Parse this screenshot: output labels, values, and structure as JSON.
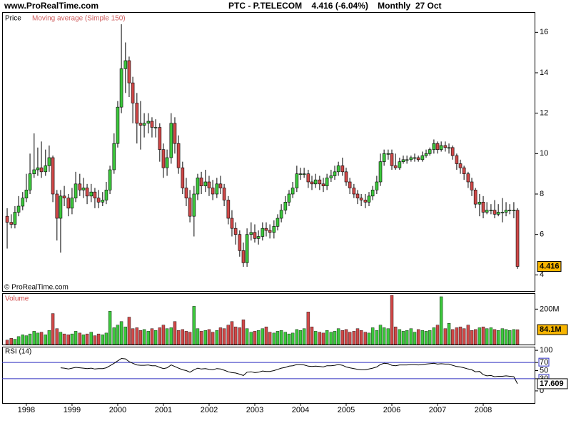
{
  "header": {
    "site": "www.ProRealTime.com",
    "title": "PTC - P.TELECOM    4.416 (-6.04%)    Monthly  27 Oct",
    "credit": "© ProRealTime.com"
  },
  "chart_data": [
    {
      "type": "candlestick",
      "title": "Price",
      "subtitle": "Moving average (Simple 150)",
      "up_color": "#3cc83c",
      "down_color": "#d04848",
      "xlim": [
        1997.47,
        2009.14
      ],
      "xticks": [
        1998,
        1999,
        2000,
        2001,
        2002,
        2003,
        2004,
        2005,
        2006,
        2007,
        2008
      ],
      "ylim": [
        3.2,
        17
      ],
      "yticks": [
        4,
        6,
        8,
        10,
        12,
        14,
        16
      ],
      "x": [
        1997.58,
        1997.67,
        1997.75,
        1997.83,
        1997.92,
        1998,
        1998.08,
        1998.17,
        1998.25,
        1998.33,
        1998.42,
        1998.5,
        1998.58,
        1998.67,
        1998.75,
        1998.83,
        1998.92,
        1999,
        1999.08,
        1999.17,
        1999.25,
        1999.33,
        1999.42,
        1999.5,
        1999.58,
        1999.67,
        1999.75,
        1999.83,
        1999.92,
        2000,
        2000.08,
        2000.17,
        2000.25,
        2000.33,
        2000.42,
        2000.5,
        2000.58,
        2000.67,
        2000.75,
        2000.83,
        2000.92,
        2001,
        2001.08,
        2001.17,
        2001.25,
        2001.33,
        2001.42,
        2001.5,
        2001.58,
        2001.67,
        2001.75,
        2001.83,
        2001.92,
        2002,
        2002.08,
        2002.17,
        2002.25,
        2002.33,
        2002.42,
        2002.5,
        2002.58,
        2002.67,
        2002.75,
        2002.83,
        2002.92,
        2003,
        2003.08,
        2003.17,
        2003.25,
        2003.33,
        2003.42,
        2003.5,
        2003.58,
        2003.67,
        2003.75,
        2003.83,
        2003.92,
        2004,
        2004.08,
        2004.17,
        2004.25,
        2004.33,
        2004.42,
        2004.5,
        2004.58,
        2004.67,
        2004.75,
        2004.83,
        2004.92,
        2005,
        2005.08,
        2005.17,
        2005.25,
        2005.33,
        2005.42,
        2005.5,
        2005.58,
        2005.67,
        2005.75,
        2005.83,
        2005.92,
        2006,
        2006.08,
        2006.17,
        2006.25,
        2006.33,
        2006.42,
        2006.5,
        2006.58,
        2006.67,
        2006.75,
        2006.83,
        2006.92,
        2007,
        2007.08,
        2007.17,
        2007.25,
        2007.33,
        2007.42,
        2007.5,
        2007.58,
        2007.67,
        2007.75,
        2007.83,
        2007.92,
        2008,
        2008.08,
        2008.17,
        2008.25,
        2008.33,
        2008.42,
        2008.5,
        2008.58,
        2008.67,
        2008.75
      ],
      "open": [
        6.9,
        6.6,
        6.5,
        7.1,
        7.4,
        7.8,
        8.2,
        9.0,
        9.2,
        9.3,
        9.1,
        9.4,
        9.8,
        8.0,
        6.8,
        7.9,
        7.8,
        7.3,
        7.8,
        8.5,
        8.2,
        8.3,
        7.9,
        8.1,
        7.8,
        7.6,
        7.7,
        8.2,
        9.2,
        10.5,
        12.3,
        14.2,
        14.6,
        13.5,
        12.5,
        11.5,
        11.4,
        11.5,
        11.6,
        11.3,
        11.3,
        10.2,
        9.3,
        9.8,
        11.5,
        10.5,
        9.3,
        8.3,
        7.8,
        6.9,
        8.0,
        8.8,
        8.4,
        8.6,
        8.3,
        8.0,
        8.5,
        8.3,
        7.7,
        6.8,
        6.3,
        6.0,
        5.2,
        4.6,
        6.0,
        6.1,
        5.8,
        5.9,
        6.3,
        6.2,
        6.1,
        6.4,
        6.8,
        7.2,
        7.6,
        8.0,
        8.3,
        9.0,
        9.0,
        9.0,
        8.6,
        8.5,
        8.7,
        8.5,
        8.4,
        8.8,
        8.9,
        9.1,
        9.4,
        9.1,
        8.6,
        8.3,
        8.0,
        7.8,
        7.7,
        7.6,
        7.9,
        8.2,
        8.6,
        9.6,
        10.0,
        10.0,
        9.4,
        9.3,
        9.6,
        9.7,
        9.7,
        9.8,
        9.8,
        9.7,
        9.9,
        10.0,
        10.2,
        10.5,
        10.2,
        10.4,
        10.3,
        10.3,
        9.9,
        9.5,
        9.3,
        9.0,
        8.6,
        8.2,
        7.5,
        7.6,
        7.1,
        7.2,
        7.2,
        7.0,
        7.1,
        7.1,
        7.2,
        7.2,
        7.2
      ],
      "high": [
        7.3,
        7.0,
        7.4,
        7.9,
        8.1,
        9.0,
        10.0,
        11.0,
        10.3,
        10.6,
        10.2,
        10.4,
        9.9,
        8.2,
        8.2,
        8.4,
        8.0,
        8.3,
        9.1,
        9.0,
        8.8,
        8.5,
        8.5,
        8.3,
        8.2,
        8.1,
        8.6,
        9.4,
        11.0,
        12.6,
        16.4,
        15.5,
        14.8,
        13.8,
        13.0,
        12.6,
        12.0,
        12.0,
        11.8,
        11.7,
        11.5,
        10.5,
        10.2,
        12.0,
        11.8,
        10.9,
        9.6,
        8.8,
        8.2,
        8.4,
        9.0,
        9.1,
        9.2,
        8.9,
        8.7,
        8.8,
        8.9,
        8.5,
        7.9,
        7.2,
        6.6,
        6.2,
        5.6,
        6.3,
        6.6,
        6.5,
        6.2,
        6.6,
        6.6,
        6.5,
        6.7,
        7.0,
        7.5,
        7.9,
        8.2,
        8.6,
        9.4,
        9.3,
        9.3,
        9.2,
        8.9,
        9.0,
        8.9,
        8.8,
        9.0,
        9.2,
        9.4,
        9.6,
        9.8,
        9.3,
        8.8,
        8.5,
        8.2,
        8.0,
        8.0,
        8.1,
        8.4,
        8.9,
        10.0,
        10.2,
        10.2,
        10.2,
        10.0,
        9.8,
        9.9,
        9.9,
        9.9,
        10.0,
        9.9,
        10.1,
        10.2,
        10.3,
        10.7,
        10.6,
        10.6,
        10.6,
        10.5,
        10.4,
        10.0,
        9.7,
        9.4,
        9.1,
        8.8,
        8.3,
        8.0,
        7.9,
        7.6,
        7.5,
        7.7,
        7.5,
        7.8,
        7.6,
        7.5,
        7.6,
        7.3
      ],
      "low": [
        5.3,
        6.3,
        6.3,
        6.9,
        7.2,
        7.6,
        8.0,
        8.8,
        8.9,
        8.8,
        8.9,
        9.1,
        7.6,
        5.7,
        5.1,
        7.4,
        6.9,
        7.0,
        7.6,
        7.9,
        7.8,
        7.5,
        7.6,
        7.3,
        7.3,
        7.4,
        7.5,
        8.0,
        9.0,
        10.3,
        12.0,
        13.0,
        12.8,
        11.5,
        10.5,
        10.2,
        10.8,
        11.0,
        10.8,
        10.8,
        9.6,
        8.8,
        8.9,
        9.5,
        10.0,
        9.0,
        8.0,
        7.4,
        6.6,
        5.9,
        7.7,
        8.0,
        8.1,
        7.9,
        7.7,
        7.8,
        8.0,
        7.4,
        6.5,
        5.9,
        5.5,
        4.9,
        4.4,
        4.4,
        5.7,
        5.6,
        5.5,
        5.7,
        5.9,
        5.8,
        5.8,
        6.2,
        6.6,
        7.0,
        7.4,
        7.8,
        8.1,
        8.7,
        8.8,
        8.3,
        8.2,
        8.3,
        8.2,
        8.1,
        8.2,
        8.6,
        8.7,
        8.9,
        8.9,
        8.4,
        8.0,
        7.8,
        7.5,
        7.4,
        7.3,
        7.4,
        7.7,
        8.0,
        8.4,
        9.4,
        9.7,
        9.2,
        9.2,
        9.2,
        9.5,
        9.5,
        9.6,
        9.6,
        9.6,
        9.6,
        9.8,
        9.9,
        10.0,
        10.0,
        10.1,
        10.1,
        10.0,
        9.7,
        9.2,
        9.0,
        8.7,
        8.3,
        7.9,
        7.3,
        6.9,
        6.8,
        7.0,
        7.0,
        6.8,
        6.9,
        6.6,
        6.9,
        7.0,
        6.8,
        4.3
      ],
      "close": [
        6.6,
        6.5,
        7.1,
        7.4,
        7.8,
        8.2,
        9.0,
        9.2,
        9.3,
        9.1,
        9.4,
        9.8,
        8.0,
        6.8,
        7.9,
        7.8,
        7.3,
        7.8,
        8.5,
        8.2,
        8.3,
        7.9,
        8.1,
        7.8,
        7.6,
        7.7,
        8.2,
        9.2,
        10.5,
        12.3,
        14.2,
        14.6,
        13.5,
        12.5,
        11.5,
        11.4,
        11.5,
        11.6,
        11.3,
        11.3,
        10.2,
        9.3,
        9.8,
        11.5,
        10.5,
        9.3,
        8.3,
        7.8,
        6.9,
        8.0,
        8.8,
        8.4,
        8.6,
        8.3,
        8.0,
        8.5,
        8.3,
        7.7,
        6.8,
        6.3,
        6.0,
        5.2,
        4.6,
        6.0,
        6.1,
        5.8,
        5.9,
        6.3,
        6.2,
        6.1,
        6.4,
        6.8,
        7.2,
        7.6,
        8.0,
        8.3,
        9.0,
        9.0,
        9.0,
        8.6,
        8.5,
        8.7,
        8.5,
        8.4,
        8.8,
        8.9,
        9.1,
        9.4,
        9.1,
        8.6,
        8.3,
        8.0,
        7.8,
        7.7,
        7.6,
        7.9,
        8.2,
        8.6,
        9.6,
        10.0,
        10.0,
        9.4,
        9.3,
        9.6,
        9.7,
        9.7,
        9.8,
        9.8,
        9.7,
        9.9,
        10.0,
        10.2,
        10.5,
        10.2,
        10.4,
        10.3,
        10.3,
        9.9,
        9.5,
        9.3,
        9.0,
        8.6,
        8.2,
        7.5,
        7.6,
        7.1,
        7.2,
        7.2,
        7.0,
        7.1,
        7.1,
        7.2,
        7.2,
        7.2,
        4.416
      ]
    },
    {
      "type": "bar",
      "title": "Volume",
      "ylim": [
        0,
        290000000.0
      ],
      "yticks": [
        {
          "value": 200000000.0,
          "label": "200M"
        }
      ],
      "last_value_label": "84.1M",
      "values": [
        25000000.0,
        35000000.0,
        30000000.0,
        45000000.0,
        55000000.0,
        50000000.0,
        60000000.0,
        75000000.0,
        65000000.0,
        70000000.0,
        55000000.0,
        80000000.0,
        175000000.0,
        90000000.0,
        70000000.0,
        60000000.0,
        55000000.0,
        60000000.0,
        75000000.0,
        65000000.0,
        55000000.0,
        60000000.0,
        70000000.0,
        50000000.0,
        60000000.0,
        55000000.0,
        65000000.0,
        188000000.0,
        95000000.0,
        110000000.0,
        130000000.0,
        100000000.0,
        155000000.0,
        90000000.0,
        95000000.0,
        80000000.0,
        85000000.0,
        75000000.0,
        90000000.0,
        80000000.0,
        95000000.0,
        110000000.0,
        90000000.0,
        95000000.0,
        130000000.0,
        80000000.0,
        85000000.0,
        75000000.0,
        70000000.0,
        216000000.0,
        90000000.0,
        75000000.0,
        80000000.0,
        85000000.0,
        70000000.0,
        80000000.0,
        95000000.0,
        90000000.0,
        110000000.0,
        130000000.0,
        100000000.0,
        95000000.0,
        140000000.0,
        90000000.0,
        70000000.0,
        75000000.0,
        80000000.0,
        90000000.0,
        100000000.0,
        70000000.0,
        65000000.0,
        75000000.0,
        80000000.0,
        70000000.0,
        60000000.0,
        65000000.0,
        85000000.0,
        80000000.0,
        90000000.0,
        184000000.0,
        100000000.0,
        75000000.0,
        70000000.0,
        65000000.0,
        80000000.0,
        70000000.0,
        75000000.0,
        90000000.0,
        80000000.0,
        85000000.0,
        70000000.0,
        75000000.0,
        90000000.0,
        80000000.0,
        70000000.0,
        65000000.0,
        95000000.0,
        80000000.0,
        110000000.0,
        95000000.0,
        90000000.0,
        278000000.0,
        100000000.0,
        85000000.0,
        75000000.0,
        80000000.0,
        90000000.0,
        70000000.0,
        85000000.0,
        80000000.0,
        75000000.0,
        80000000.0,
        95000000.0,
        110000000.0,
        270000000.0,
        90000000.0,
        120000000.0,
        85000000.0,
        95000000.0,
        100000000.0,
        90000000.0,
        110000000.0,
        80000000.0,
        85000000.0,
        95000000.0,
        100000000.0,
        90000000.0,
        95000000.0,
        85000000.0,
        80000000.0,
        90000000.0,
        85000000.0,
        80000000.0,
        85000000.0,
        84100000.0
      ]
    },
    {
      "type": "line",
      "title": "RSI (14)",
      "color": "#000000",
      "level_color": "#3030c0",
      "levels": [
        70,
        30
      ],
      "ylim": [
        -30,
        109
      ],
      "yticks": [
        0,
        30,
        50,
        70,
        100
      ],
      "values": [
        null,
        null,
        null,
        null,
        null,
        null,
        null,
        null,
        null,
        null,
        null,
        null,
        null,
        null,
        57,
        56,
        54,
        56,
        58,
        57,
        56,
        55,
        56,
        54,
        55,
        55,
        57,
        62,
        68,
        74,
        80,
        79,
        72,
        68,
        64,
        63,
        63,
        64,
        62,
        62,
        58,
        55,
        57,
        64,
        60,
        56,
        52,
        50,
        46,
        52,
        56,
        54,
        55,
        53,
        52,
        55,
        54,
        51,
        47,
        45,
        44,
        41,
        38,
        46,
        47,
        45,
        46,
        49,
        48,
        48,
        50,
        53,
        56,
        58,
        61,
        62,
        65,
        65,
        64,
        61,
        60,
        61,
        60,
        59,
        62,
        62,
        63,
        65,
        63,
        59,
        57,
        55,
        53,
        52,
        52,
        54,
        56,
        59,
        65,
        68,
        67,
        63,
        62,
        64,
        64,
        64,
        65,
        65,
        64,
        65,
        66,
        67,
        68,
        66,
        67,
        66,
        66,
        63,
        60,
        59,
        57,
        54,
        52,
        47,
        48,
        40,
        37,
        38,
        35,
        36,
        36,
        37,
        36,
        35,
        17.609
      ]
    }
  ]
}
